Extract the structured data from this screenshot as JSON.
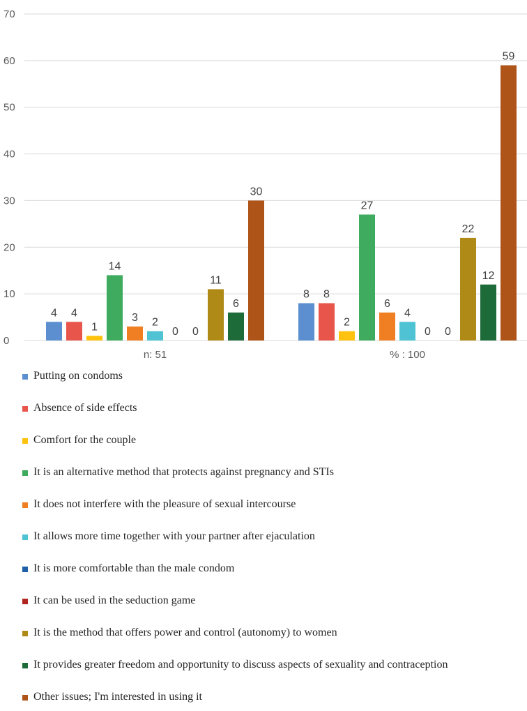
{
  "chart_data": {
    "type": "bar",
    "categories": [
      "n: 51",
      "% : 100"
    ],
    "ylim": [
      0,
      70
    ],
    "yticks": [
      0,
      10,
      20,
      30,
      40,
      50,
      60,
      70
    ],
    "grid": true,
    "legend_position": "bottom",
    "series": [
      {
        "name": "Putting on condoms",
        "color": "#5B8FCF",
        "values": [
          4,
          8
        ]
      },
      {
        "name": "Absence of side effects",
        "color": "#E8564B",
        "values": [
          4,
          8
        ]
      },
      {
        "name": "Comfort for the couple",
        "color": "#FFC20E",
        "values": [
          1,
          2
        ]
      },
      {
        "name": "It is an alternative method that protects against pregnancy and STIs",
        "color": "#3EAB5E",
        "values": [
          14,
          27
        ]
      },
      {
        "name": "It does not interfere with the pleasure of sexual intercourse",
        "color": "#F07F24",
        "values": [
          3,
          6
        ]
      },
      {
        "name": "It allows more time together with your partner after ejaculation",
        "color": "#4FC3D3",
        "values": [
          2,
          4
        ]
      },
      {
        "name": "It is more comfortable than the male condom",
        "color": "#1F5FA8",
        "values": [
          0,
          0
        ]
      },
      {
        "name": "It can be used in the seduction game",
        "color": "#B0261F",
        "values": [
          0,
          0
        ]
      },
      {
        "name": "It is the method that offers power and control (autonomy) to women",
        "color": "#B08A17",
        "values": [
          11,
          22
        ]
      },
      {
        "name": "It provides greater freedom and opportunity to discuss aspects of sexuality and contraception",
        "color": "#1E6B3A",
        "values": [
          6,
          12
        ]
      },
      {
        "name": "Other issues; I'm interested in using it",
        "color": "#AE5418",
        "values": [
          30,
          59
        ]
      }
    ]
  }
}
